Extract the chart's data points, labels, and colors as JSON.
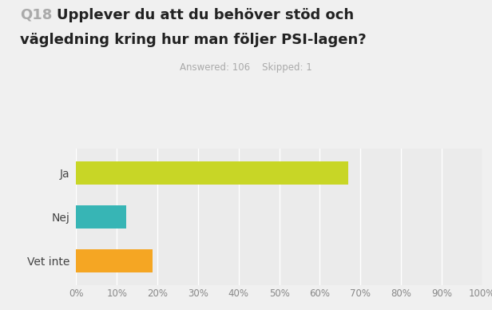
{
  "title_q": "Q18",
  "title_main": " Upplever du att du behöver stöd och\nvägledning kring hur man följer PSI-lagen?",
  "subtitle": "Answered: 106    Skipped: 1",
  "categories": [
    "Ja",
    "Nej",
    "Vet inte"
  ],
  "values": [
    0.6698,
    0.1226,
    0.1887
  ],
  "bar_colors": [
    "#c8d626",
    "#37b5b5",
    "#f5a623"
  ],
  "bar_height": 0.52,
  "xlim": [
    0,
    1.0
  ],
  "xtick_values": [
    0,
    0.1,
    0.2,
    0.3,
    0.4,
    0.5,
    0.6,
    0.7,
    0.8,
    0.9,
    1.0
  ],
  "xtick_labels": [
    "0%",
    "10%",
    "20%",
    "30%",
    "40%",
    "50%",
    "60%",
    "70%",
    "80%",
    "90%",
    "100%"
  ],
  "background_color": "#f0f0f0",
  "axes_background": "#ebebeb",
  "grid_color": "#ffffff",
  "title_q_color": "#aaaaaa",
  "title_main_color": "#222222",
  "subtitle_color": "#aaaaaa",
  "ylabel_color": "#444444",
  "ylabel_fontsize": 10,
  "title_q_fontsize": 13,
  "title_main_fontsize": 13,
  "subtitle_fontsize": 8.5,
  "xtick_fontsize": 8.5
}
